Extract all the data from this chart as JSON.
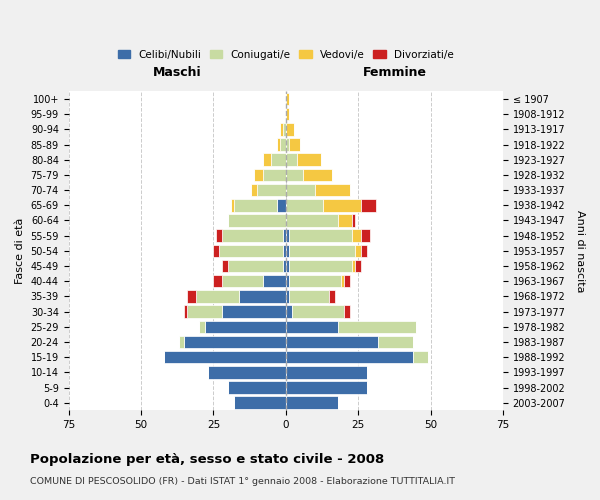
{
  "age_groups": [
    "0-4",
    "5-9",
    "10-14",
    "15-19",
    "20-24",
    "25-29",
    "30-34",
    "35-39",
    "40-44",
    "45-49",
    "50-54",
    "55-59",
    "60-64",
    "65-69",
    "70-74",
    "75-79",
    "80-84",
    "85-89",
    "90-94",
    "95-99",
    "100+"
  ],
  "birth_years": [
    "2003-2007",
    "1998-2002",
    "1993-1997",
    "1988-1992",
    "1983-1987",
    "1978-1982",
    "1973-1977",
    "1968-1972",
    "1963-1967",
    "1958-1962",
    "1953-1957",
    "1948-1952",
    "1943-1947",
    "1938-1942",
    "1933-1937",
    "1928-1932",
    "1923-1927",
    "1918-1922",
    "1913-1917",
    "1908-1912",
    "≤ 1907"
  ],
  "male": {
    "celibi": [
      18,
      20,
      27,
      42,
      35,
      28,
      22,
      16,
      8,
      1,
      1,
      1,
      0,
      3,
      0,
      0,
      0,
      0,
      0,
      0,
      0
    ],
    "coniugati": [
      0,
      0,
      0,
      0,
      2,
      2,
      12,
      15,
      14,
      19,
      22,
      21,
      20,
      15,
      10,
      8,
      5,
      2,
      1,
      0,
      0
    ],
    "vedovi": [
      0,
      0,
      0,
      0,
      0,
      0,
      0,
      0,
      0,
      0,
      0,
      0,
      0,
      1,
      2,
      3,
      3,
      1,
      1,
      0,
      0
    ],
    "divorziati": [
      0,
      0,
      0,
      0,
      0,
      0,
      1,
      3,
      3,
      2,
      2,
      2,
      0,
      0,
      0,
      0,
      0,
      0,
      0,
      0,
      0
    ]
  },
  "female": {
    "nubili": [
      18,
      28,
      28,
      44,
      32,
      18,
      2,
      1,
      1,
      1,
      1,
      1,
      0,
      0,
      0,
      0,
      0,
      0,
      0,
      0,
      0
    ],
    "coniugate": [
      0,
      0,
      0,
      5,
      12,
      27,
      18,
      14,
      18,
      22,
      23,
      22,
      18,
      13,
      10,
      6,
      4,
      1,
      0,
      0,
      0
    ],
    "vedove": [
      0,
      0,
      0,
      0,
      0,
      0,
      0,
      0,
      1,
      1,
      2,
      3,
      5,
      13,
      12,
      10,
      8,
      4,
      3,
      1,
      1
    ],
    "divorziate": [
      0,
      0,
      0,
      0,
      0,
      0,
      2,
      2,
      2,
      2,
      2,
      3,
      1,
      5,
      0,
      0,
      0,
      0,
      0,
      0,
      0
    ]
  },
  "colors": {
    "celibi": "#3d6da8",
    "coniugati": "#c8dba2",
    "vedovi": "#f5c842",
    "divorziati": "#cc2020"
  },
  "xlim": 75,
  "title": "Popolazione per età, sesso e stato civile - 2008",
  "subtitle": "COMUNE DI PESCOSOLIDO (FR) - Dati ISTAT 1° gennaio 2008 - Elaborazione TUTTITALIA.IT",
  "xlabel_left": "Maschi",
  "xlabel_right": "Femmine",
  "ylabel": "Fasce di età",
  "ylabel_right": "Anni di nascita",
  "legend_labels": [
    "Celibi/Nubili",
    "Coniugati/e",
    "Vedovi/e",
    "Divorziati/e"
  ],
  "bg_color": "#f0f0f0",
  "plot_bg_color": "#ffffff"
}
